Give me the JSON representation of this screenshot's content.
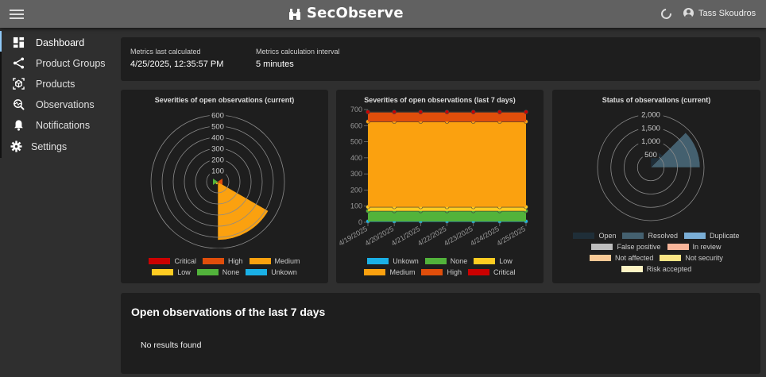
{
  "header": {
    "app_title": "SecObserve",
    "menu_icon": "hamburger-menu-icon",
    "logo_icon": "binoculars-icon",
    "refresh_icon": "refresh-icon",
    "user_name": "Tass Skoudros"
  },
  "sidebar": {
    "items": [
      {
        "label": "Dashboard",
        "icon": "dashboard-icon",
        "active": true
      },
      {
        "label": "Product Groups",
        "icon": "share-icon"
      },
      {
        "label": "Products",
        "icon": "product-icon"
      },
      {
        "label": "Observations",
        "icon": "observation-search-icon"
      },
      {
        "label": "Notifications",
        "icon": "bell-icon"
      },
      {
        "label": "Settings",
        "icon": "gear-icon"
      }
    ]
  },
  "metrics": {
    "last_calculated_label": "Metrics last calculated",
    "last_calculated_value": "4/25/2025, 12:35:57 PM",
    "interval_label": "Metrics calculation interval",
    "interval_value": "5 minutes"
  },
  "colors": {
    "Critical": "#cc0000",
    "High": "#e04e0b",
    "Medium": "#fba10f",
    "Low": "#ffcc22",
    "None": "#52b33b",
    "Unkown": "#1ab0e6",
    "Open": "#1f2e38",
    "Resolved": "#44606f",
    "Duplicate": "#7aaed6",
    "False positive": "#bdbdbd",
    "In review": "#f8b59a",
    "Not affected": "#f9c995",
    "Not security": "#fbe585",
    "Risk accepted": "#fdf4c4"
  },
  "chart_data": [
    {
      "type": "polarArea",
      "title": "Severities of open observations (current)",
      "categories": [
        "Critical",
        "High",
        "Medium",
        "Low",
        "None",
        "Unkown"
      ],
      "values": [
        0,
        20,
        525,
        25,
        20,
        5
      ],
      "rticks": [
        100,
        200,
        300,
        400,
        500,
        600
      ],
      "rlim": [
        0,
        600
      ],
      "legend": [
        "Critical",
        "High",
        "Medium",
        "Low",
        "None",
        "Unkown"
      ],
      "legend_position": "bottom"
    },
    {
      "type": "area",
      "stacked": true,
      "title": "Severities of open observations (last 7 days)",
      "x": [
        "4/19/2025",
        "4/20/2025",
        "4/21/2025",
        "4/22/2025",
        "4/23/2025",
        "4/24/2025",
        "4/25/2025"
      ],
      "series": [
        {
          "name": "Unkown",
          "values": [
            5,
            5,
            5,
            5,
            5,
            5,
            5
          ]
        },
        {
          "name": "None",
          "values": [
            65,
            65,
            65,
            65,
            65,
            65,
            65
          ]
        },
        {
          "name": "Low",
          "values": [
            25,
            25,
            25,
            25,
            25,
            25,
            25
          ]
        },
        {
          "name": "Medium",
          "values": [
            530,
            530,
            530,
            530,
            530,
            530,
            530
          ]
        },
        {
          "name": "High",
          "values": [
            60,
            60,
            60,
            60,
            60,
            60,
            60
          ]
        },
        {
          "name": "Critical",
          "values": [
            0,
            0,
            0,
            0,
            0,
            0,
            0
          ]
        }
      ],
      "yticks": [
        0,
        100,
        200,
        300,
        400,
        500,
        600,
        700
      ],
      "ylim": [
        0,
        700
      ],
      "legend": [
        "Unkown",
        "None",
        "Low",
        "Medium",
        "High",
        "Critical"
      ],
      "legend_position": "bottom"
    },
    {
      "type": "polarArea",
      "title": "Status of observations (current)",
      "categories": [
        "Open",
        "Resolved",
        "Duplicate",
        "False positive",
        "In review",
        "Not affected",
        "Not security",
        "Risk accepted"
      ],
      "values": [
        630,
        1850,
        0,
        0,
        0,
        0,
        0,
        0
      ],
      "rticks": [
        500,
        1000,
        1500,
        2000
      ],
      "rtick_labels": [
        "500",
        "1,000",
        "1,500",
        "2,000"
      ],
      "rlim": [
        0,
        2000
      ],
      "legend": [
        "Open",
        "Resolved",
        "Duplicate",
        "False positive",
        "In review",
        "Not affected",
        "Not security",
        "Risk accepted"
      ],
      "legend_position": "bottom"
    }
  ],
  "open_observations": {
    "title": "Open observations of the last 7 days",
    "empty_text": "No results found"
  }
}
